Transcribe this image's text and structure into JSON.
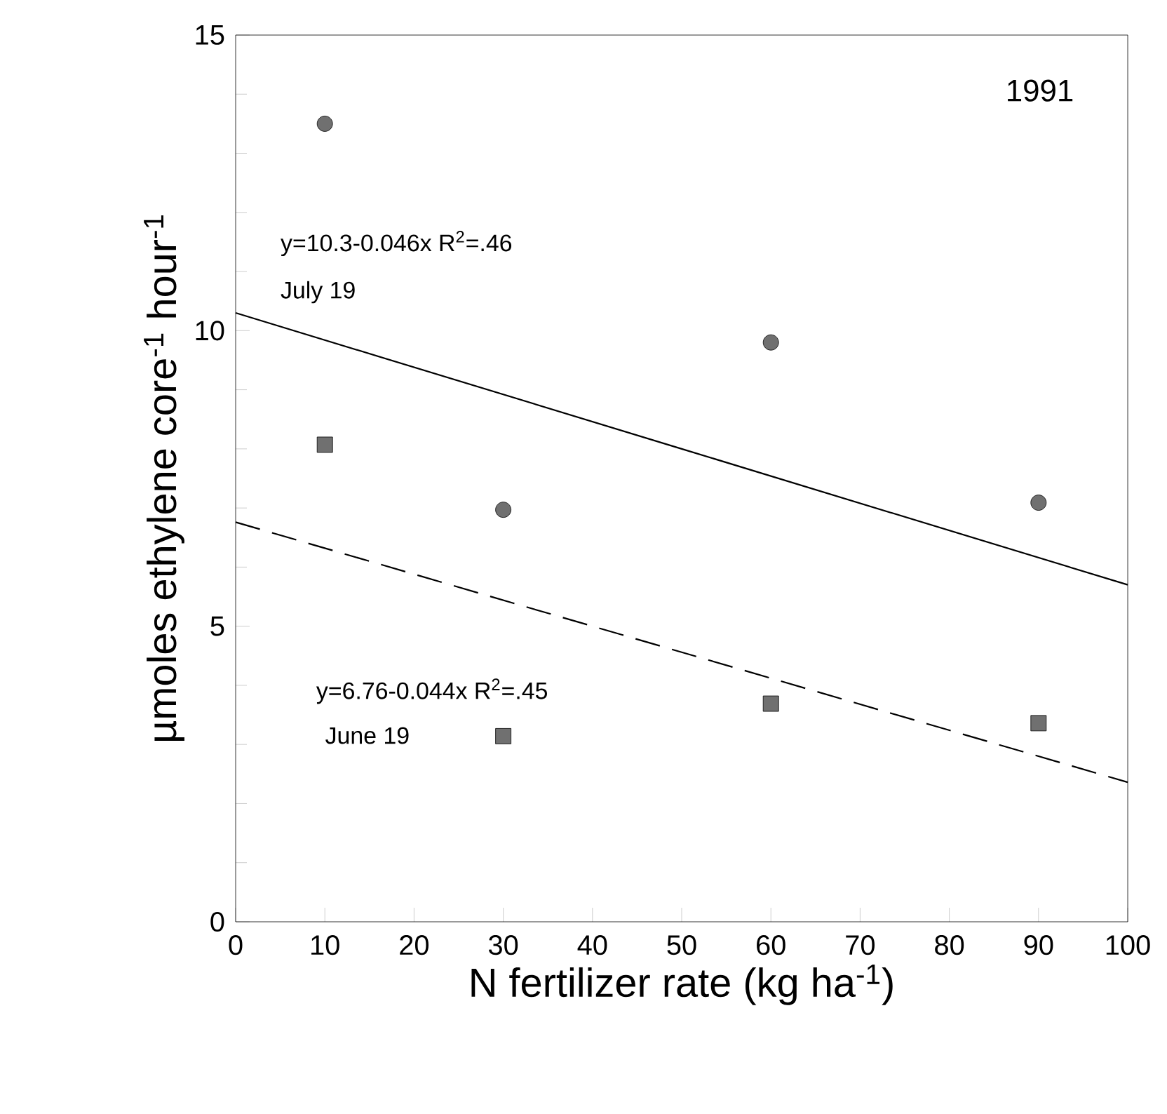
{
  "chart_data": {
    "type": "scatter",
    "xlabel": "N fertilizer rate (kg ha$^{-1}$)",
    "ylabel": "µmoles ethylene core$^{-1}$ hour$^{-1}$",
    "x": [
      10,
      30,
      60,
      90
    ],
    "series": [
      {
        "marker": "circle",
        "color": "#707070",
        "values": [
          13.5,
          6.97,
          9.8,
          7.09
        ]
      },
      {
        "marker": "square",
        "color": "#707070",
        "values": [
          8.07,
          3.14,
          3.69,
          3.36
        ]
      },
      {
        "type": "line",
        "x": [
          0,
          50,
          100
        ],
        "values": [
          10.3,
          8.0,
          5.7
        ],
        "color": "#000000",
        "line_style": "solid",
        "marker": "none"
      },
      {
        "type": "line",
        "x": [
          0,
          50,
          100
        ],
        "values": [
          6.76,
          4.56,
          2.36
        ],
        "color": "#000000",
        "line_style": "dashed",
        "marker": "none"
      }
    ],
    "annotations": [
      "1991",
      "y=10.3-0.046x  R$^{2}$=.46",
      "July 19",
      "y=6.76-0.044x  R$^{2}$=.45",
      "June 19"
    ],
    "xlim": [
      0,
      100
    ],
    "ylim": [
      0,
      15
    ],
    "xticks": [
      0,
      10,
      20,
      30,
      40,
      50,
      60,
      70,
      80,
      90,
      100
    ],
    "yticks": [
      0,
      5,
      10,
      15
    ]
  }
}
